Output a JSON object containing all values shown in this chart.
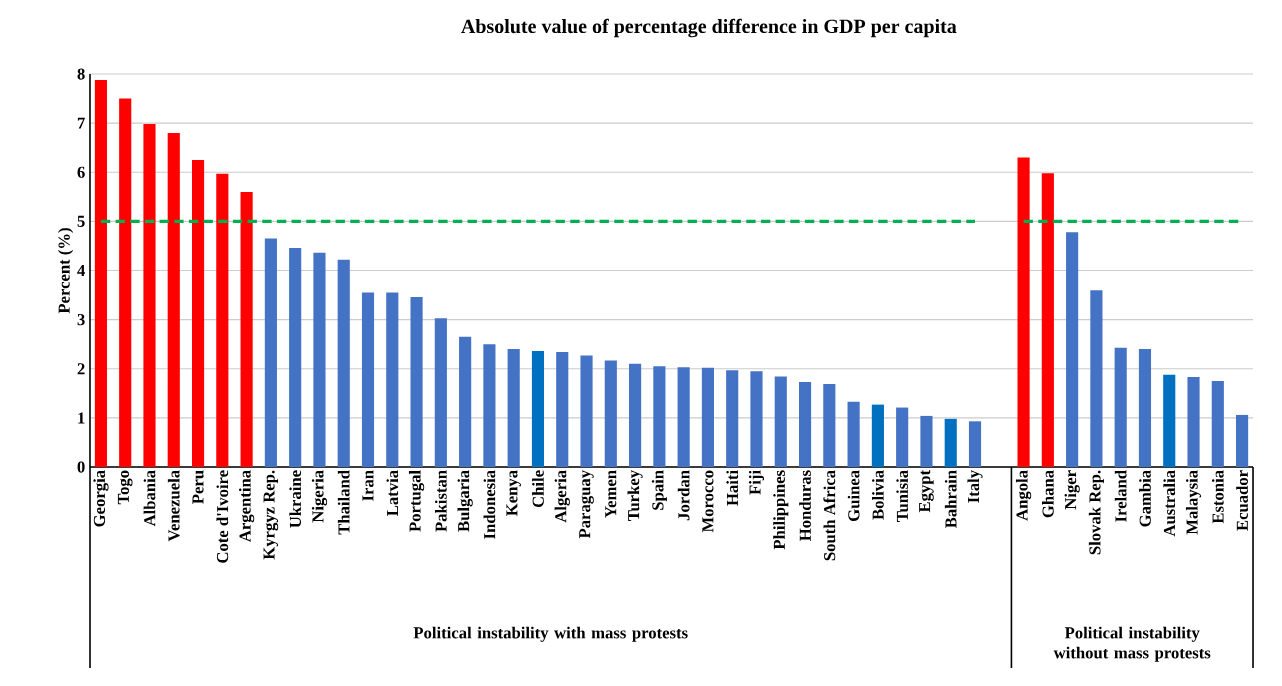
{
  "chart_data": {
    "type": "bar",
    "title": "Absolute value of percentage difference in GDP per capita",
    "ylabel": "Percent (%)",
    "categories": [
      "Georgia",
      "Togo",
      "Albania",
      "Venezuela",
      "Peru",
      "Cote d'Ivoire",
      "Argentina",
      "Kyrgyz Rep.",
      "Ukraine",
      "Nigeria",
      "Thailand",
      "Iran",
      "Latvia",
      "Portugal",
      "Pakistan",
      "Bulgaria",
      "Indonesia",
      "Kenya",
      "Chile",
      "Algeria",
      "Paraguay",
      "Yemen",
      "Turkey",
      "Spain",
      "Jordan",
      "Morocco",
      "Haiti",
      "Fiji",
      "Philippines",
      "Honduras",
      "South Africa",
      "Guinea",
      "Bolivia",
      "Tunisia",
      "Egypt",
      "Bahrain",
      "Italy",
      null,
      "Angola",
      "Ghana",
      "Niger",
      "Slovak Rep.",
      "Ireland",
      "Gambia",
      "Australia",
      "Malaysia",
      "Estonia",
      "Ecuador"
    ],
    "ylim": [
      0,
      8
    ],
    "yticks": [
      0,
      1,
      2,
      3,
      4,
      5,
      6,
      7,
      8
    ],
    "grid": "y",
    "annotations": [
      "Political instability with mass protests",
      "Political instability without mass protests"
    ],
    "series": [
      {
        "values": [
          7.88,
          7.5,
          6.98,
          6.8,
          6.25,
          5.97,
          5.6,
          4.65,
          4.46,
          4.36,
          4.22,
          3.55,
          3.55,
          3.46,
          3.03,
          2.65,
          2.5,
          2.4,
          2.36,
          2.34,
          2.27,
          2.17,
          2.1,
          2.05,
          2.03,
          2.02,
          1.97,
          1.95,
          1.84,
          1.73,
          1.69,
          1.33,
          1.27,
          1.21,
          1.04,
          0.98,
          0.93,
          null,
          6.3,
          5.98,
          4.78,
          3.6,
          2.43,
          2.4,
          1.88,
          1.83,
          1.75,
          1.06
        ],
        "colors": [
          "#ff0000",
          "#ff0000",
          "#ff0000",
          "#ff0000",
          "#ff0000",
          "#ff0000",
          "#ff0000",
          "#4472c4",
          "#4472c4",
          "#4472c4",
          "#4472c4",
          "#4472c4",
          "#4472c4",
          "#4472c4",
          "#4472c4",
          "#4472c4",
          "#4472c4",
          "#4472c4",
          "#0070c0",
          "#4472c4",
          "#4472c4",
          "#4472c4",
          "#4472c4",
          "#4472c4",
          "#4472c4",
          "#4472c4",
          "#4472c4",
          "#4472c4",
          "#4472c4",
          "#4472c4",
          "#4472c4",
          "#4472c4",
          "#0070c0",
          "#4472c4",
          "#4472c4",
          "#0070c0",
          "#4472c4",
          null,
          "#ff0000",
          "#ff0000",
          "#4472c4",
          "#4472c4",
          "#4472c4",
          "#4472c4",
          "#0070c0",
          "#4472c4",
          "#4472c4",
          "#4472c4"
        ]
      },
      {
        "type": "line",
        "color": "#00b050",
        "line_style": "dashed",
        "values": [
          5,
          5,
          5,
          5,
          5,
          5,
          5,
          5,
          5,
          5,
          5,
          5,
          5,
          5,
          5,
          5,
          5,
          5,
          5,
          5,
          5,
          5,
          5,
          5,
          5,
          5,
          5,
          5,
          5,
          5,
          5,
          5,
          5,
          5,
          5,
          5,
          5,
          null,
          5,
          5,
          5,
          5,
          5,
          5,
          5,
          5,
          5,
          5
        ]
      }
    ]
  }
}
